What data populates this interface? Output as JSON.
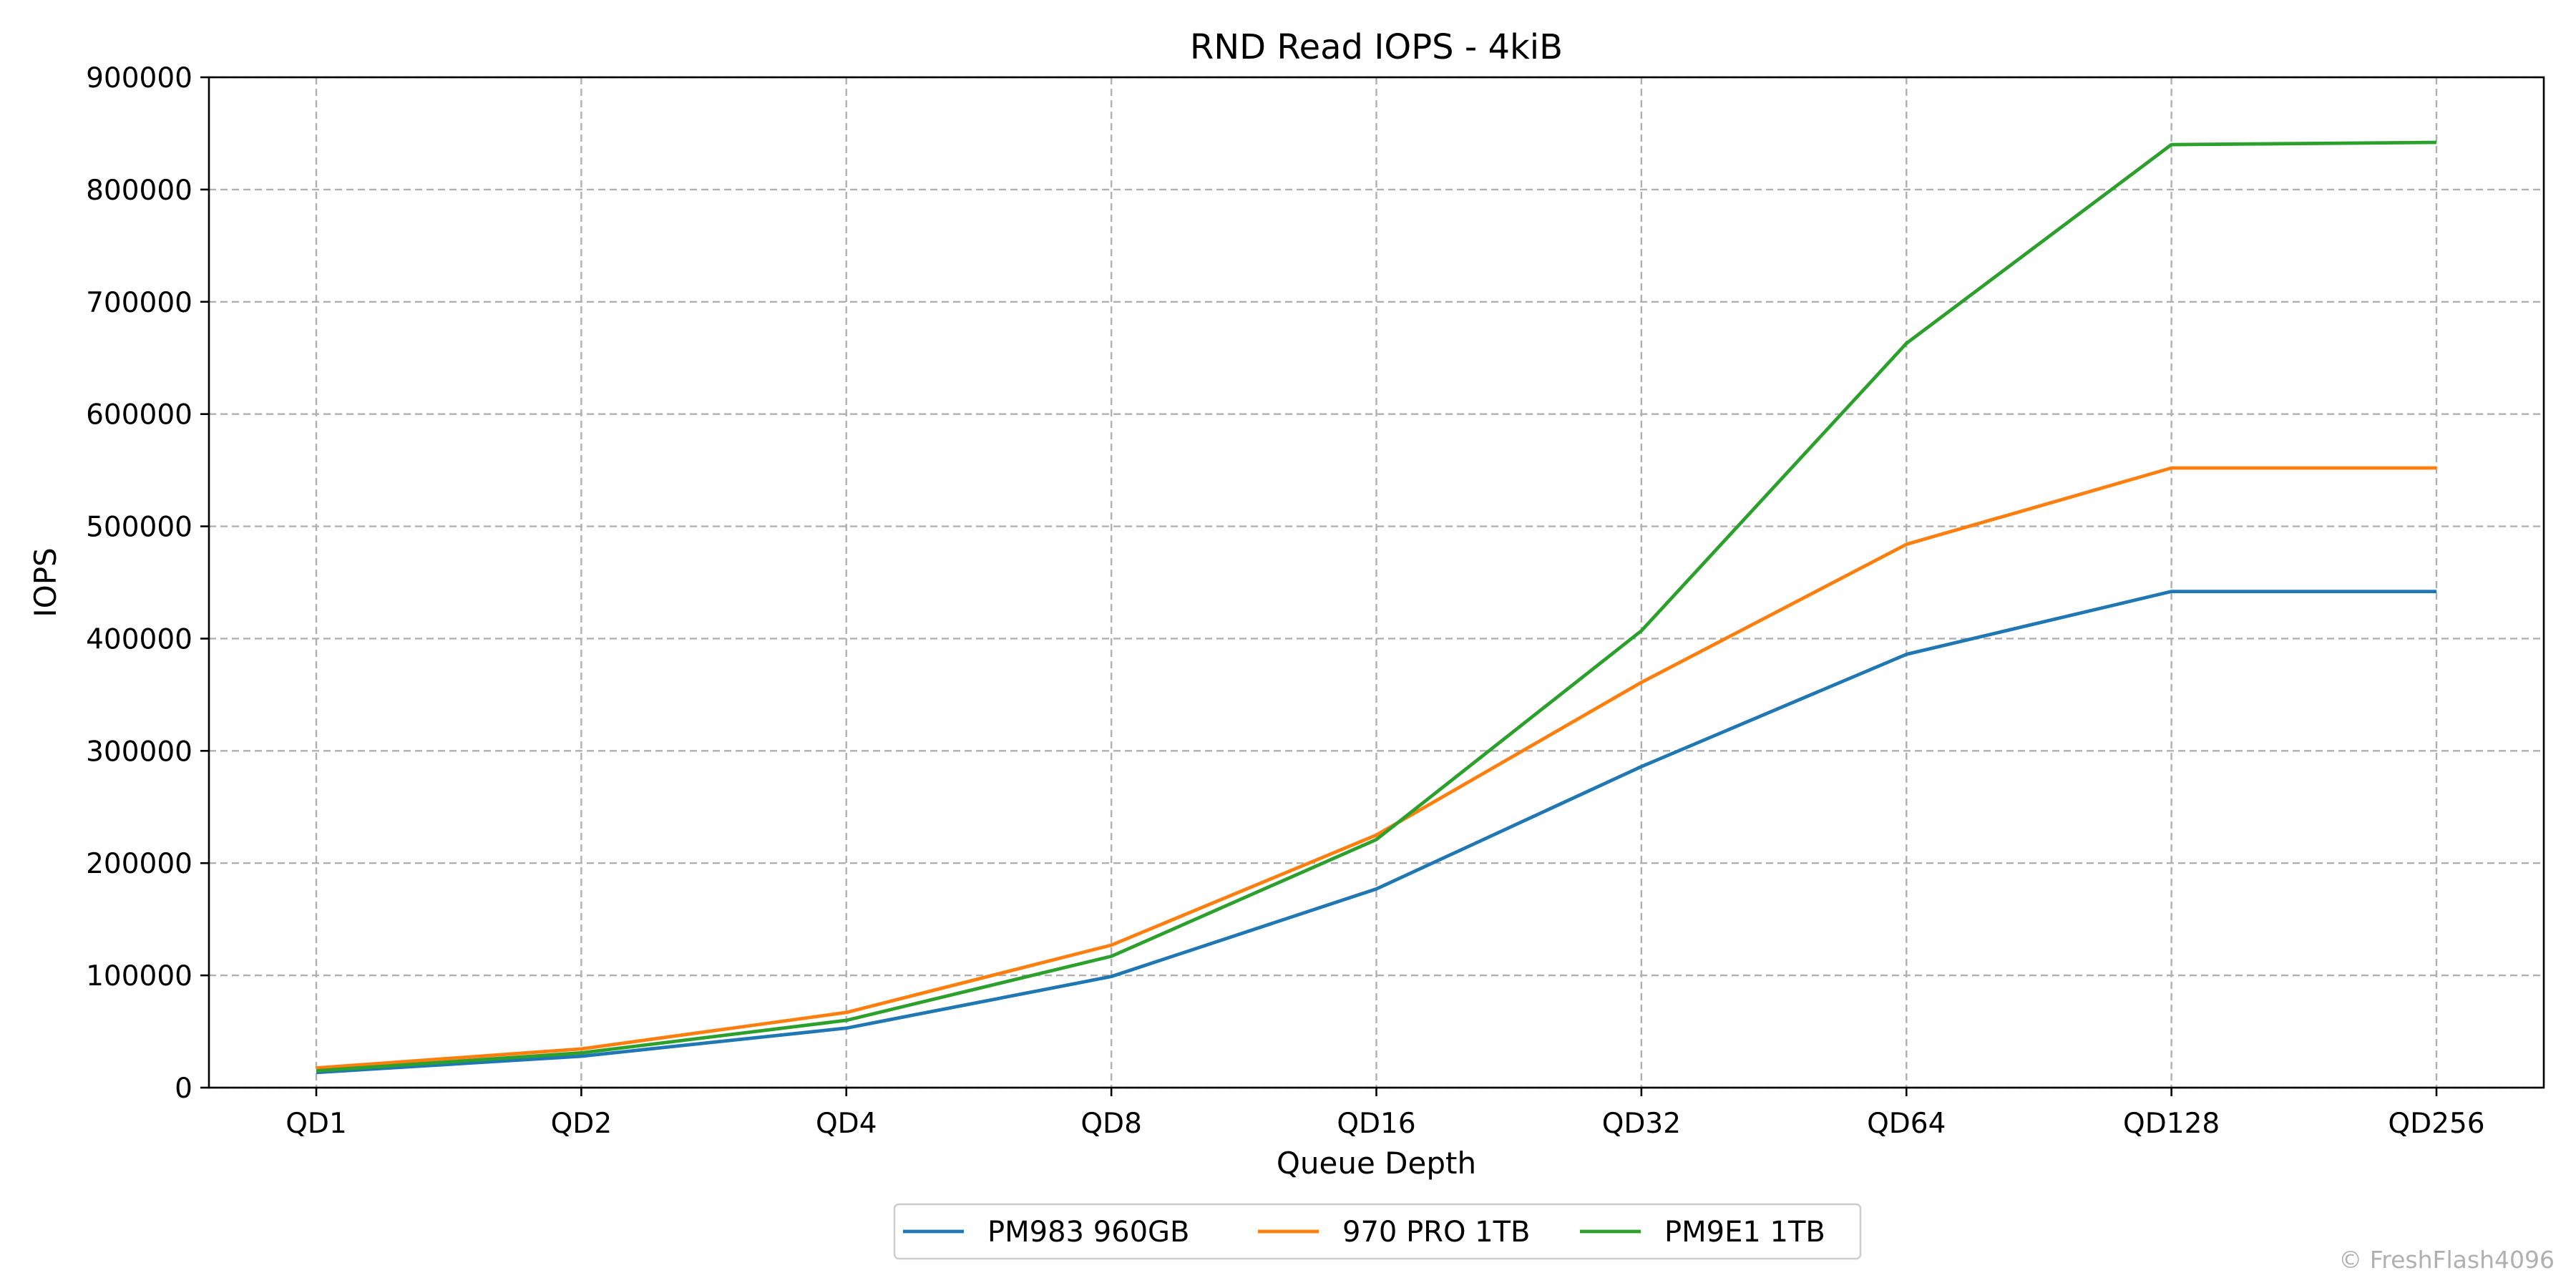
{
  "chart_data": {
    "type": "line",
    "title": "RND Read IOPS - 4kiB",
    "xlabel": "Queue Depth",
    "ylabel": "IOPS",
    "categories": [
      "QD1",
      "QD2",
      "QD4",
      "QD8",
      "QD16",
      "QD32",
      "QD64",
      "QD128",
      "QD256"
    ],
    "ylim": [
      0,
      900000
    ],
    "yticks": [
      0,
      100000,
      200000,
      300000,
      400000,
      500000,
      600000,
      700000,
      800000,
      900000
    ],
    "grid": true,
    "legend_position": "bottom-center",
    "series": [
      {
        "name": "PM983 960GB",
        "color": "#1f77b4",
        "values": [
          13500,
          28000,
          53000,
          99000,
          177000,
          286000,
          386000,
          442000,
          442000
        ]
      },
      {
        "name": "970 PRO 1TB",
        "color": "#ff7f0e",
        "values": [
          17500,
          34500,
          67000,
          127000,
          225000,
          361000,
          484000,
          552000,
          552000
        ]
      },
      {
        "name": "PM9E1 1TB",
        "color": "#2ca02c",
        "values": [
          15000,
          31000,
          60000,
          117000,
          221000,
          407000,
          663000,
          840000,
          842000
        ]
      }
    ]
  },
  "watermark": "© FreshFlash4096"
}
